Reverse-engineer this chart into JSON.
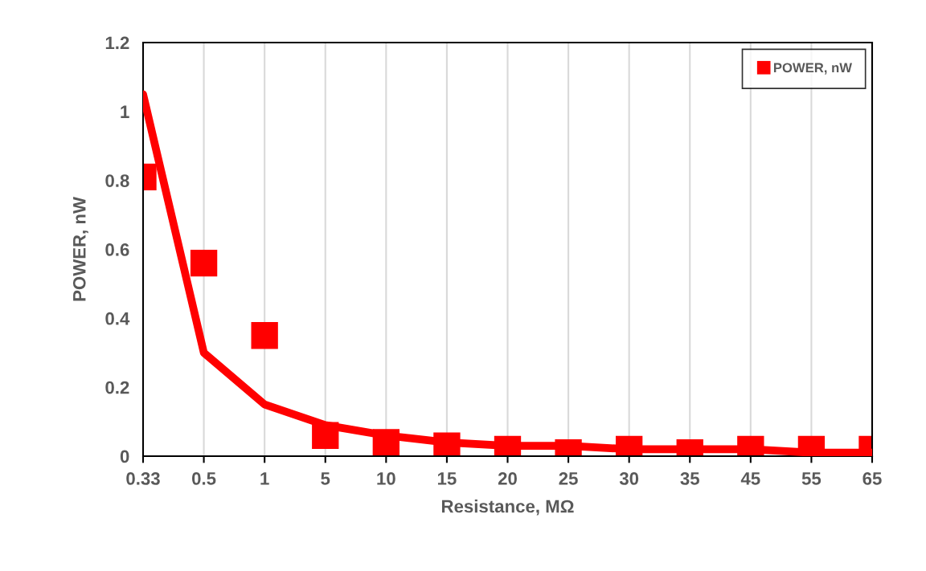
{
  "chart_data": {
    "type": "scatter",
    "xlabel": "Resistance, MΩ",
    "ylabel": "POWER, nW",
    "categories": [
      "0.33",
      "0.5",
      "1",
      "5",
      "10",
      "15",
      "20",
      "25",
      "30",
      "35",
      "45",
      "55",
      "65"
    ],
    "series": [
      {
        "name": "POWER, nW",
        "color": "#ff0000",
        "marker": "square",
        "values": [
          0.81,
          0.56,
          0.35,
          0.06,
          0.04,
          0.03,
          0.02,
          0.01,
          0.02,
          0.01,
          0.02,
          0.02,
          0.02
        ]
      },
      {
        "type": "line",
        "color": "#ff0000",
        "line_style": "solid",
        "values": [
          1.05,
          0.3,
          0.15,
          0.09,
          0.06,
          0.04,
          0.03,
          0.03,
          0.02,
          0.02,
          0.02,
          0.01,
          0.01
        ]
      }
    ],
    "ylim": [
      0,
      1.2
    ],
    "yticks": [
      0,
      0.2,
      0.4,
      0.6,
      0.8,
      1,
      1.2
    ],
    "grid": "x",
    "legend": "top right"
  }
}
